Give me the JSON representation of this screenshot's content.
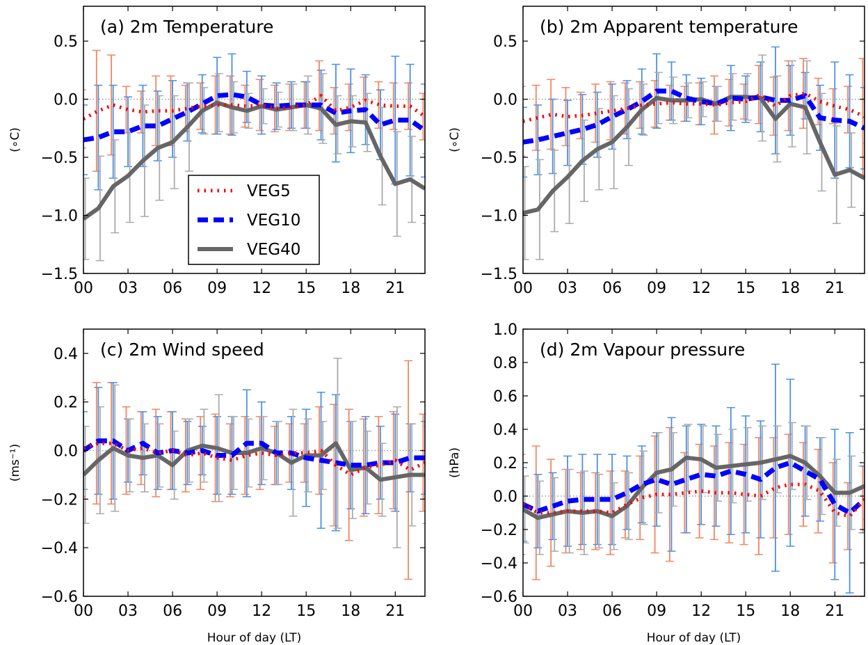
{
  "figure": {
    "xlabel": "Hour of day (LT)"
  },
  "legend": [
    {
      "name": "VEG5",
      "color": "#ff0000"
    },
    {
      "name": "VEG10",
      "color": "#0000ff"
    },
    {
      "name": "VEG40",
      "color": "#666666"
    }
  ],
  "chart_data": [
    {
      "type": "line",
      "panel": "a",
      "title": "(a) 2m Temperature",
      "ylabel": "(∘C)",
      "xlabel": "",
      "ylim": [
        -1.5,
        0.8
      ],
      "yticks": [
        -1.5,
        -1.0,
        -0.5,
        0.0,
        0.5
      ],
      "ytick_labels": [
        "−1.5",
        "−1.0",
        "−0.5",
        "0.0",
        "0.5"
      ],
      "xlim": [
        0,
        23
      ],
      "xticks": [
        0,
        3,
        6,
        9,
        12,
        15,
        18,
        21
      ],
      "xtick_labels": [
        "00",
        "03",
        "06",
        "09",
        "12",
        "15",
        "18",
        "21"
      ],
      "zero_line": true,
      "legend_position": "center-left",
      "x": [
        0,
        1,
        2,
        3,
        4,
        5,
        6,
        7,
        8,
        9,
        10,
        11,
        12,
        13,
        14,
        15,
        16,
        17,
        18,
        19,
        20,
        21,
        22,
        23
      ],
      "series": [
        {
          "name": "VEG5",
          "color": "#ff0000",
          "style": "dotted",
          "values": [
            -0.17,
            -0.1,
            -0.05,
            -0.09,
            -0.11,
            -0.1,
            -0.1,
            -0.08,
            -0.06,
            -0.05,
            -0.05,
            -0.06,
            -0.05,
            -0.08,
            -0.07,
            -0.05,
            0.03,
            -0.1,
            -0.07,
            -0.01,
            -0.05,
            -0.06,
            -0.06,
            -0.15
          ],
          "err": [
            0.25,
            0.52,
            0.43,
            0.2,
            0.18,
            0.3,
            0.3,
            0.2,
            0.2,
            0.25,
            0.25,
            0.18,
            0.22,
            0.2,
            0.2,
            0.2,
            0.3,
            0.2,
            0.2,
            0.2,
            0.2,
            0.2,
            0.2,
            0.2
          ]
        },
        {
          "name": "VEG10",
          "color": "#0000ff",
          "style": "dashed",
          "values": [
            -0.35,
            -0.33,
            -0.28,
            -0.28,
            -0.23,
            -0.23,
            -0.17,
            -0.11,
            -0.04,
            0.03,
            0.04,
            0.02,
            -0.05,
            -0.06,
            -0.05,
            -0.05,
            -0.05,
            -0.12,
            -0.1,
            -0.09,
            -0.22,
            -0.18,
            -0.18,
            -0.27
          ],
          "err": [
            0.3,
            0.45,
            0.4,
            0.3,
            0.35,
            0.3,
            0.33,
            0.25,
            0.25,
            0.33,
            0.35,
            0.22,
            0.25,
            0.2,
            0.2,
            0.2,
            0.3,
            0.42,
            0.36,
            0.3,
            0.3,
            0.55,
            0.48,
            0.4
          ]
        },
        {
          "name": "VEG40",
          "color": "#666666",
          "style": "solid",
          "values": [
            -1.03,
            -0.94,
            -0.75,
            -0.66,
            -0.53,
            -0.42,
            -0.37,
            -0.24,
            -0.1,
            -0.03,
            -0.07,
            -0.1,
            -0.06,
            -0.09,
            -0.07,
            -0.05,
            -0.08,
            -0.22,
            -0.19,
            -0.2,
            -0.49,
            -0.73,
            -0.69,
            -0.77
          ],
          "err": [
            0.35,
            0.45,
            0.4,
            0.4,
            0.48,
            0.45,
            0.4,
            0.38,
            0.2,
            0.25,
            0.22,
            0.15,
            0.15,
            0.15,
            0.2,
            0.25,
            0.3,
            0.25,
            0.22,
            0.25,
            0.42,
            0.45,
            0.37,
            0.3
          ]
        }
      ]
    },
    {
      "type": "line",
      "panel": "b",
      "title": "(b) 2m Apparent temperature",
      "ylabel": "(∘C)",
      "xlabel": "",
      "ylim": [
        -1.5,
        0.8
      ],
      "yticks": [
        -1.5,
        -1.0,
        -0.5,
        0.0,
        0.5
      ],
      "ytick_labels": [
        "−1.5",
        "−1.0",
        "−0.5",
        "0.0",
        "0.5"
      ],
      "xlim": [
        0,
        23
      ],
      "xticks": [
        0,
        3,
        6,
        9,
        12,
        15,
        18,
        21
      ],
      "xtick_labels": [
        "00",
        "03",
        "06",
        "09",
        "12",
        "15",
        "18",
        "21"
      ],
      "zero_line": true,
      "x": [
        0,
        1,
        2,
        3,
        4,
        5,
        6,
        7,
        8,
        9,
        10,
        11,
        12,
        13,
        14,
        15,
        16,
        17,
        18,
        19,
        20,
        21,
        22,
        23
      ],
      "series": [
        {
          "name": "VEG5",
          "color": "#ff0000",
          "style": "dotted",
          "values": [
            -0.19,
            -0.16,
            -0.13,
            -0.15,
            -0.14,
            -0.12,
            -0.1,
            -0.08,
            -0.05,
            -0.04,
            -0.03,
            -0.04,
            -0.04,
            -0.05,
            -0.03,
            -0.02,
            0.04,
            -0.06,
            0.03,
            0.05,
            -0.02,
            -0.06,
            -0.09,
            -0.15
          ],
          "err": [
            0.3,
            0.28,
            0.3,
            0.25,
            0.2,
            0.25,
            0.25,
            0.22,
            0.2,
            0.2,
            0.15,
            0.15,
            0.18,
            0.25,
            0.2,
            0.15,
            0.25,
            0.25,
            0.3,
            0.3,
            0.2,
            0.15,
            0.2,
            0.5
          ]
        },
        {
          "name": "VEG10",
          "color": "#0000ff",
          "style": "dashed",
          "values": [
            -0.37,
            -0.35,
            -0.32,
            -0.29,
            -0.26,
            -0.22,
            -0.15,
            -0.09,
            -0.02,
            0.07,
            0.07,
            0.01,
            -0.02,
            -0.04,
            0.01,
            0.0,
            0.02,
            -0.01,
            -0.01,
            0.03,
            -0.16,
            -0.18,
            -0.19,
            -0.25
          ],
          "err": [
            0.3,
            0.3,
            0.32,
            0.28,
            0.3,
            0.28,
            0.28,
            0.25,
            0.28,
            0.32,
            0.25,
            0.2,
            0.2,
            0.15,
            0.28,
            0.2,
            0.3,
            0.46,
            0.3,
            0.2,
            0.28,
            0.5,
            0.4,
            0.35
          ]
        },
        {
          "name": "VEG40",
          "color": "#666666",
          "style": "solid",
          "values": [
            -0.98,
            -0.95,
            -0.79,
            -0.67,
            -0.53,
            -0.43,
            -0.37,
            -0.24,
            -0.09,
            0.01,
            -0.01,
            -0.01,
            0.0,
            -0.04,
            0.02,
            0.02,
            0.01,
            -0.17,
            -0.04,
            -0.07,
            -0.37,
            -0.65,
            -0.61,
            -0.68
          ],
          "err": [
            0.4,
            0.43,
            0.35,
            0.4,
            0.35,
            0.35,
            0.4,
            0.33,
            0.22,
            0.22,
            0.2,
            0.15,
            0.15,
            0.15,
            0.2,
            0.2,
            0.37,
            0.37,
            0.37,
            0.4,
            0.42,
            0.42,
            0.32,
            0.3
          ]
        }
      ]
    },
    {
      "type": "line",
      "panel": "c",
      "title": "(c) 2m Wind speed",
      "ylabel": "(ms⁻¹)",
      "xlabel": "Hour of day (LT)",
      "ylim": [
        -0.6,
        0.5
      ],
      "yticks": [
        -0.6,
        -0.4,
        -0.2,
        0.0,
        0.2,
        0.4
      ],
      "ytick_labels": [
        "−0.6",
        "−0.4",
        "−0.2",
        "0.0",
        "0.2",
        "0.4"
      ],
      "xlim": [
        0,
        23
      ],
      "xticks": [
        0,
        3,
        6,
        9,
        12,
        15,
        18,
        21
      ],
      "xtick_labels": [
        "00",
        "03",
        "06",
        "09",
        "12",
        "15",
        "18",
        "21"
      ],
      "zero_line": true,
      "x": [
        0,
        1,
        2,
        3,
        4,
        5,
        6,
        7,
        8,
        9,
        10,
        11,
        12,
        13,
        14,
        15,
        16,
        17,
        18,
        19,
        20,
        21,
        22,
        23
      ],
      "series": [
        {
          "name": "VEG5",
          "color": "#ff0000",
          "style": "dotted",
          "values": [
            0.01,
            0.03,
            0.03,
            0.0,
            0.01,
            -0.01,
            0.0,
            -0.02,
            -0.01,
            -0.03,
            -0.04,
            -0.02,
            -0.01,
            -0.02,
            -0.01,
            -0.01,
            0.0,
            -0.06,
            -0.1,
            -0.07,
            -0.06,
            -0.04,
            -0.08,
            -0.05
          ],
          "err": [
            0.2,
            0.25,
            0.25,
            0.18,
            0.15,
            0.18,
            0.16,
            0.15,
            0.15,
            0.18,
            0.15,
            0.16,
            0.15,
            0.12,
            0.12,
            0.12,
            0.18,
            0.25,
            0.27,
            0.2,
            0.2,
            0.2,
            0.45,
            0.2
          ]
        },
        {
          "name": "VEG10",
          "color": "#0000ff",
          "style": "dashed",
          "values": [
            0.0,
            0.04,
            0.04,
            0.0,
            0.03,
            -0.01,
            0.0,
            -0.01,
            0.0,
            -0.02,
            -0.02,
            0.03,
            0.03,
            -0.01,
            -0.01,
            -0.03,
            -0.04,
            -0.05,
            -0.06,
            -0.06,
            -0.05,
            -0.05,
            -0.03,
            -0.03
          ],
          "err": [
            0.16,
            0.22,
            0.24,
            0.13,
            0.13,
            0.15,
            0.16,
            0.13,
            0.1,
            0.16,
            0.16,
            0.22,
            0.17,
            0.13,
            0.15,
            0.2,
            0.28,
            0.28,
            0.18,
            0.2,
            0.15,
            0.2,
            0.14,
            0.15
          ]
        },
        {
          "name": "VEG40",
          "color": "#666666",
          "style": "solid",
          "values": [
            -0.1,
            -0.04,
            0.01,
            -0.02,
            -0.03,
            -0.02,
            -0.06,
            0.0,
            0.02,
            0.01,
            -0.01,
            -0.01,
            0.01,
            -0.01,
            -0.05,
            -0.02,
            -0.02,
            0.03,
            -0.08,
            -0.07,
            -0.12,
            -0.11,
            -0.1,
            -0.1
          ],
          "err": [
            0.2,
            0.22,
            0.26,
            0.15,
            0.14,
            0.13,
            0.14,
            0.13,
            0.15,
            0.22,
            0.15,
            0.14,
            0.13,
            0.13,
            0.22,
            0.15,
            0.14,
            0.35,
            0.2,
            0.15,
            0.15,
            0.29,
            0.21,
            0.2
          ]
        }
      ]
    },
    {
      "type": "line",
      "panel": "d",
      "title": "(d) 2m Vapour pressure",
      "ylabel": "(hPa)",
      "xlabel": "Hour of day (LT)",
      "ylim": [
        -0.6,
        1.0
      ],
      "yticks": [
        -0.6,
        -0.4,
        -0.2,
        0.0,
        0.2,
        0.4,
        0.6,
        0.8,
        1.0
      ],
      "ytick_labels": [
        "−0.6",
        "−0.4",
        "−0.2",
        "0.0",
        "0.2",
        "0.4",
        "0.6",
        "0.8",
        "1.0"
      ],
      "xlim": [
        0,
        23
      ],
      "xticks": [
        0,
        3,
        6,
        9,
        12,
        15,
        18,
        21
      ],
      "xtick_labels": [
        "00",
        "03",
        "06",
        "09",
        "12",
        "15",
        "18",
        "21"
      ],
      "zero_line": true,
      "x": [
        0,
        1,
        2,
        3,
        4,
        5,
        6,
        7,
        8,
        9,
        10,
        11,
        12,
        13,
        14,
        15,
        16,
        17,
        18,
        19,
        20,
        21,
        22,
        23
      ],
      "series": [
        {
          "name": "VEG5",
          "color": "#ff0000",
          "style": "dotted",
          "values": [
            -0.05,
            -0.1,
            -0.1,
            -0.09,
            -0.09,
            -0.09,
            -0.1,
            -0.05,
            -0.01,
            0.01,
            0.01,
            0.02,
            0.03,
            0.02,
            0.02,
            0.01,
            0.0,
            0.05,
            0.07,
            0.07,
            0.03,
            -0.1,
            -0.12,
            -0.02
          ],
          "err": [
            0.3,
            0.4,
            0.32,
            0.25,
            0.23,
            0.23,
            0.25,
            0.2,
            0.25,
            0.35,
            0.4,
            0.24,
            0.28,
            0.28,
            0.3,
            0.3,
            0.35,
            0.3,
            0.3,
            0.25,
            0.25,
            0.3,
            0.2,
            0.2
          ]
        },
        {
          "name": "VEG10",
          "color": "#0000ff",
          "style": "dashed",
          "values": [
            -0.05,
            -0.09,
            -0.06,
            -0.03,
            -0.02,
            -0.02,
            -0.02,
            0.02,
            0.07,
            0.1,
            0.07,
            0.1,
            0.13,
            0.12,
            0.15,
            0.13,
            0.1,
            0.17,
            0.2,
            0.15,
            0.1,
            -0.05,
            -0.1,
            -0.02
          ],
          "err": [
            0.22,
            0.22,
            0.2,
            0.27,
            0.27,
            0.27,
            0.27,
            0.22,
            0.23,
            0.28,
            0.4,
            0.32,
            0.3,
            0.3,
            0.38,
            0.35,
            0.35,
            0.62,
            0.5,
            0.27,
            0.25,
            0.45,
            0.48,
            0.2
          ]
        },
        {
          "name": "VEG40",
          "color": "#666666",
          "style": "solid",
          "values": [
            -0.08,
            -0.13,
            -0.11,
            -0.09,
            -0.1,
            -0.09,
            -0.12,
            -0.06,
            0.05,
            0.14,
            0.16,
            0.23,
            0.22,
            0.17,
            0.18,
            0.19,
            0.2,
            0.22,
            0.24,
            0.2,
            0.12,
            0.02,
            0.02,
            0.06
          ],
          "err": [
            0.2,
            0.22,
            0.22,
            0.25,
            0.25,
            0.22,
            0.2,
            0.2,
            0.22,
            0.24,
            0.22,
            0.2,
            0.2,
            0.2,
            0.22,
            0.22,
            0.22,
            0.2,
            0.2,
            0.22,
            0.23,
            0.2,
            0.22,
            0.2
          ]
        }
      ]
    }
  ]
}
